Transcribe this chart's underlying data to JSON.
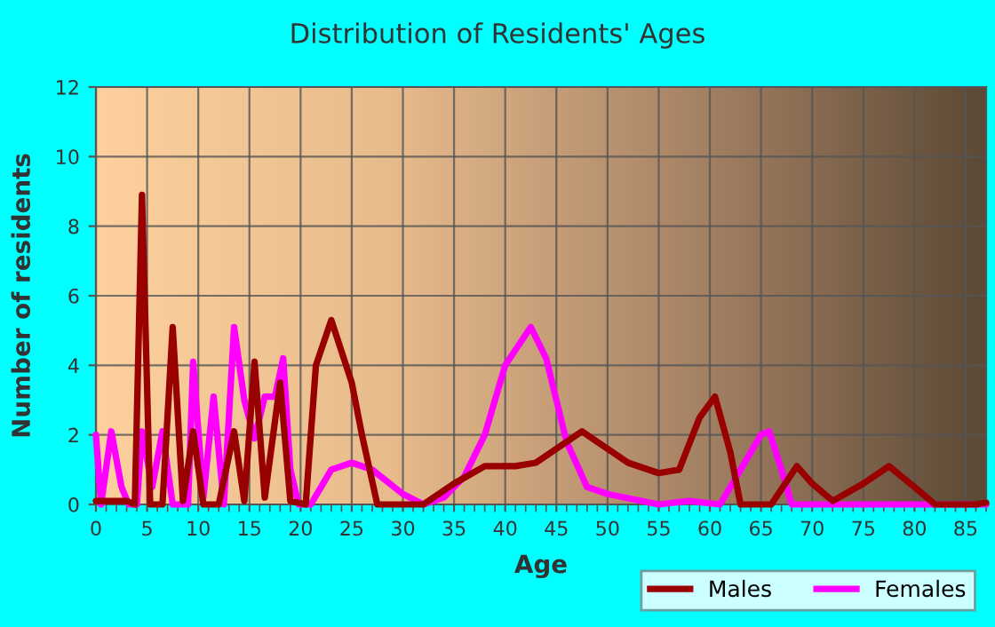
{
  "chart_data": {
    "type": "line",
    "title": "Distribution of Residents' Ages",
    "xlabel": "Age",
    "ylabel": "Number of residents",
    "xlim": [
      0,
      87
    ],
    "xticks": [
      0,
      5,
      10,
      15,
      20,
      25,
      30,
      35,
      40,
      45,
      50,
      55,
      60,
      65,
      70,
      75,
      80,
      85
    ],
    "ylim": [
      0,
      12
    ],
    "yticks": [
      0,
      2,
      4,
      6,
      8,
      10,
      12
    ],
    "grid": true,
    "legend": "bottom right",
    "marker": "none",
    "line_style": "solid",
    "series": [
      {
        "name": "Males",
        "color": "#990000",
        "x": [
          0,
          3,
          3.8,
          4.5,
          5.3,
          6.5,
          7.5,
          8.5,
          9.5,
          10.5,
          12,
          13.5,
          14.5,
          15.5,
          16.5,
          18,
          19,
          20.5,
          21.5,
          23,
          25,
          26,
          27.5,
          32,
          35,
          38,
          41,
          43,
          47.5,
          52,
          55,
          57,
          59,
          60.5,
          62,
          63,
          66,
          68.5,
          70,
          72,
          75,
          77.5,
          80,
          82,
          86,
          87
        ],
        "values": [
          0.1,
          0.1,
          0,
          8.9,
          0,
          0,
          5.1,
          0.1,
          2.1,
          0,
          0,
          2.1,
          0.1,
          4.1,
          0.2,
          3.5,
          0.1,
          0,
          4,
          5.3,
          3.5,
          2,
          0,
          0,
          0.6,
          1.1,
          1.1,
          1.2,
          2.1,
          1.2,
          0.9,
          1,
          2.5,
          3.1,
          1.5,
          0,
          0,
          1.1,
          0.6,
          0.1,
          0.6,
          1.1,
          0.5,
          0,
          0,
          0.05
        ]
      },
      {
        "name": "Females",
        "color": "#ff00ff",
        "x": [
          0,
          0.5,
          1.5,
          2.5,
          3.2,
          4,
          4.5,
          5.5,
          6.5,
          7.5,
          9,
          9.5,
          10.5,
          11.5,
          12.5,
          13.5,
          14.5,
          15.5,
          16.5,
          17.5,
          18.3,
          19,
          19.8,
          21,
          23,
          25,
          27,
          30,
          32,
          34,
          36,
          38,
          40,
          42.5,
          44,
          46,
          48,
          50,
          55,
          58,
          61,
          63,
          65,
          65.8,
          67,
          68,
          72,
          87
        ],
        "values": [
          2,
          0,
          2.1,
          0.5,
          0,
          0,
          2.1,
          0.5,
          2.1,
          0,
          0,
          4.1,
          0.2,
          3.1,
          0,
          5.1,
          3,
          1.9,
          3.1,
          3.1,
          4.2,
          1,
          0,
          0,
          1,
          1.2,
          1,
          0.3,
          0,
          0.2,
          0.8,
          2,
          4,
          5.1,
          4.2,
          1.8,
          0.5,
          0.3,
          0,
          0.1,
          0,
          1,
          2,
          2.1,
          1,
          0,
          0,
          0
        ]
      }
    ]
  }
}
